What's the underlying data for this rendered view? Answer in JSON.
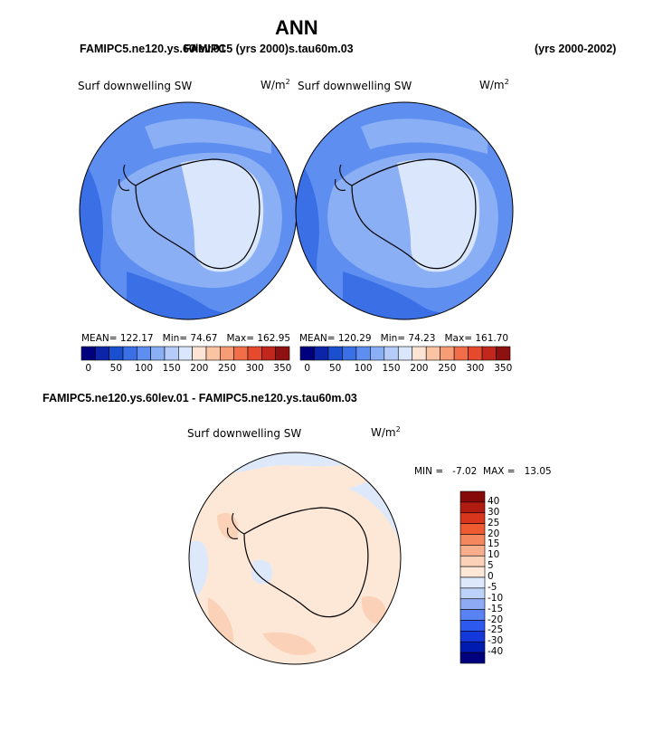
{
  "page": {
    "title": "ANN",
    "case_top_left": "FAMIPC5.ne120.ys.60lev.01",
    "case_top_overlay": "FAMIPC5 (yrs 2000)s.tau60m.03",
    "years_top_right": "(yrs 2000-2002)",
    "diff_title": "FAMIPC5.ne120.ys.60lev.01 - FAMIPC5.ne120.ys.tau60m.03"
  },
  "colors": {
    "land_outline": "#000000",
    "abs_levels": [
      "#00007f",
      "#0b24a8",
      "#1a4fd0",
      "#3a6fe6",
      "#5e8ff0",
      "#8aaff4",
      "#b4ccf7",
      "#d9e6fb",
      "#fce4d4",
      "#f9c3a4",
      "#f69d76",
      "#f26e49",
      "#e54a2c",
      "#c2271d",
      "#8e1010"
    ],
    "diff_levels": [
      "#00007f",
      "#001cb0",
      "#1438d9",
      "#2e59ee",
      "#5982f2",
      "#8eaaf4",
      "#bdd2f8",
      "#dde9fb",
      "#fde8d8",
      "#fbd2b8",
      "#f8ae8b",
      "#f5875f",
      "#ee5a31",
      "#d8371e",
      "#b21b12",
      "#860a0a"
    ]
  },
  "chart_data": [
    {
      "type": "heatmap",
      "projection": "south-polar-stereographic",
      "title": "Surf downwelling SW",
      "units": "W/m",
      "units_sup": "2",
      "stats": {
        "mean_label": "MEAN=",
        "mean": "122.17",
        "min_label": "Min=",
        "min": "74.67",
        "max_label": "Max=",
        "max": "162.95"
      },
      "colorbar": {
        "orientation": "horizontal",
        "tick_labels": [
          "0",
          "50",
          "100",
          "150",
          "200",
          "250",
          "300",
          "350"
        ],
        "levels": [
          0,
          25,
          50,
          75,
          100,
          125,
          150,
          175,
          200,
          225,
          250,
          275,
          300,
          325,
          350
        ]
      }
    },
    {
      "type": "heatmap",
      "projection": "south-polar-stereographic",
      "title": "Surf downwelling SW",
      "units": "W/m",
      "units_sup": "2",
      "stats": {
        "mean_label": "MEAN=",
        "mean": "120.29",
        "min_label": "Min=",
        "min": "74.23",
        "max_label": "Max=",
        "max": "161.70"
      },
      "colorbar": {
        "orientation": "horizontal",
        "tick_labels": [
          "0",
          "50",
          "100",
          "150",
          "200",
          "250",
          "300",
          "350"
        ],
        "levels": [
          0,
          25,
          50,
          75,
          100,
          125,
          150,
          175,
          200,
          225,
          250,
          275,
          300,
          325,
          350
        ]
      }
    },
    {
      "type": "heatmap",
      "projection": "south-polar-stereographic",
      "title": "Surf downwelling SW",
      "units": "W/m",
      "units_sup": "2",
      "stats": {
        "min_label": "MIN =",
        "min": "-7.02",
        "max_label": "MAX =",
        "max": "13.05"
      },
      "colorbar": {
        "orientation": "vertical",
        "tick_labels": [
          "40",
          "30",
          "25",
          "20",
          "15",
          "10",
          "5",
          "0",
          "-5",
          "-10",
          "-15",
          "-20",
          "-25",
          "-30",
          "-40"
        ]
      }
    }
  ]
}
